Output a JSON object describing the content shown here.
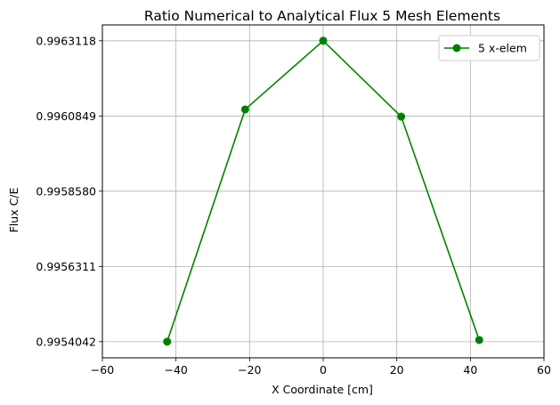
{
  "chart_data": {
    "type": "line",
    "title": "Ratio Numerical to Analytical Flux 5 Mesh Elements",
    "xlabel": "X Coordinate [cm]",
    "ylabel": "Flux C/E",
    "xlim": [
      -60,
      60
    ],
    "ylim": [
      0.9953555,
      0.9963596
    ],
    "xticks": [
      -60,
      -40,
      -20,
      0,
      20,
      40,
      60
    ],
    "xtick_labels": [
      "−60",
      "−40",
      "−20",
      "0",
      "20",
      "40",
      "60"
    ],
    "yticks": [
      0.9954042,
      0.9956311,
      0.995858,
      0.9960849,
      0.9963118
    ],
    "ytick_labels": [
      "0.9954042",
      "0.9956311",
      "0.9958580",
      "0.9960849",
      "0.9963118"
    ],
    "grid": true,
    "legend_position": "top-right",
    "series": [
      {
        "name": "5 x-elem",
        "color": "#008000",
        "marker": "circle",
        "x": [
          -42.4,
          -21.2,
          0,
          21.2,
          42.4
        ],
        "y": [
          0.9954042,
          0.9961047,
          0.9963118,
          0.996083,
          0.9954093
        ]
      }
    ]
  }
}
